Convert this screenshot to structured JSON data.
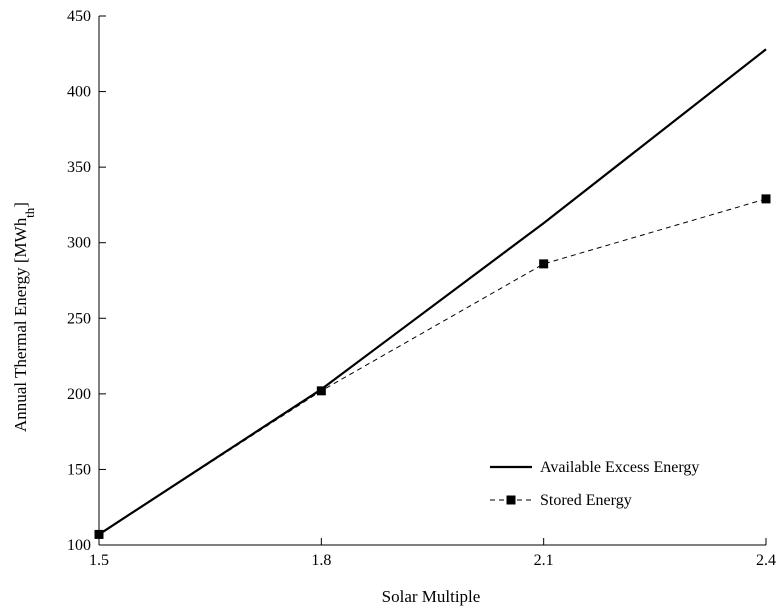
{
  "chart_data": {
    "type": "line",
    "xlabel": "Solar Multiple",
    "ylabel": "Annual Thermal Energy [MWh",
    "ylabel_sub": "th",
    "ylabel_end": "]",
    "xlim": [
      1.5,
      2.4
    ],
    "ylim": [
      100,
      450
    ],
    "xticks": [
      "1.5",
      "1.8",
      "2.1",
      "2.4"
    ],
    "yticks": [
      "100",
      "150",
      "200",
      "250",
      "300",
      "350",
      "400",
      "450"
    ],
    "grid": false,
    "legend_position": "bottom-right",
    "series": [
      {
        "name": "Available Excess Energy",
        "style": "solid",
        "color": "#000000",
        "x": [
          1.5,
          1.8,
          2.1,
          2.4
        ],
        "y": [
          107,
          203,
          313,
          428
        ]
      },
      {
        "name": "Stored Energy",
        "style": "dashed",
        "marker": "square",
        "color": "#000000",
        "x": [
          1.5,
          1.8,
          2.1,
          2.4
        ],
        "y": [
          107,
          202,
          286,
          329
        ]
      }
    ]
  }
}
